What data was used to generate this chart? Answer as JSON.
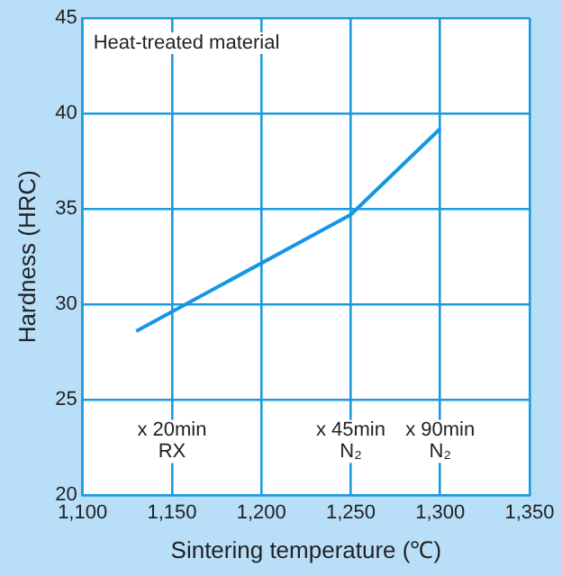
{
  "chart_data": {
    "type": "line",
    "xlabel": "Sintering temperature (℃)",
    "ylabel": "Hardness (HRC)",
    "x": [
      1130,
      1250,
      1300
    ],
    "series": [
      {
        "color": "#1496e6",
        "values": [
          28.6,
          34.7,
          39.2
        ]
      }
    ],
    "xlim": [
      1100,
      1350
    ],
    "xticks": [
      {
        "value": 1100,
        "label": "1,100"
      },
      {
        "value": 1150,
        "label": "1,150"
      },
      {
        "value": 1200,
        "label": "1,200"
      },
      {
        "value": 1250,
        "label": "1,250"
      },
      {
        "value": 1300,
        "label": "1,300"
      },
      {
        "value": 1350,
        "label": "1,350"
      }
    ],
    "ylim": [
      20,
      45
    ],
    "yticks": [
      20,
      25,
      30,
      35,
      40,
      45
    ],
    "grid": true,
    "legend": false,
    "marker": "none",
    "line_style": "solid",
    "annotations": [
      "Heat-treated material",
      "x 20min\nRX",
      "x 45min\nN₂",
      "x 90min\nN₂"
    ]
  }
}
